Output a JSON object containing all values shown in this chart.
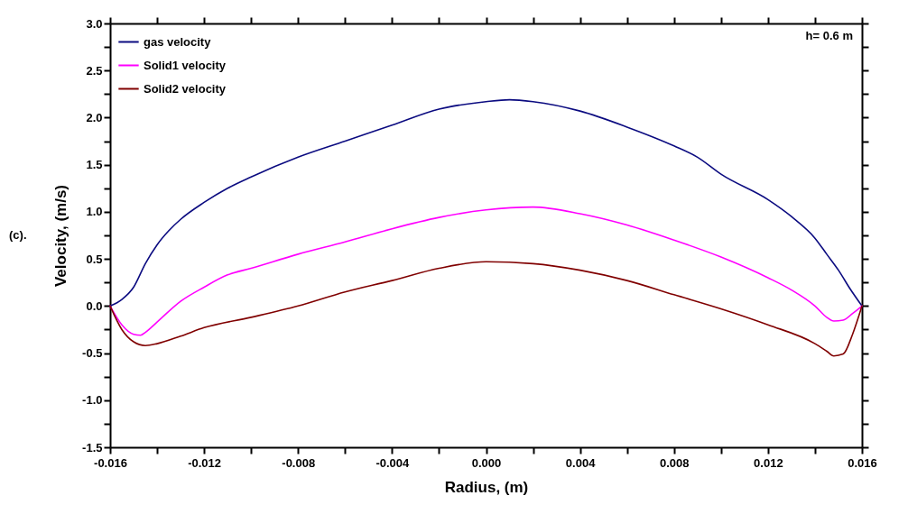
{
  "chart_data": {
    "type": "line",
    "xlabel": "Radius, (m)",
    "ylabel": "Velocity, (m/s)",
    "annotations": [
      "h= 0.6 m",
      "(c)."
    ],
    "xlim": [
      -0.016,
      0.016
    ],
    "ylim": [
      -1.5,
      3.0
    ],
    "xticks": [
      {
        "value": -0.016,
        "label": "-0.016"
      },
      {
        "value": -0.014,
        "label": null
      },
      {
        "value": -0.012,
        "label": "-0.012"
      },
      {
        "value": -0.01,
        "label": null
      },
      {
        "value": -0.008,
        "label": "-0.008"
      },
      {
        "value": -0.006,
        "label": null
      },
      {
        "value": -0.004,
        "label": "-0.004"
      },
      {
        "value": -0.002,
        "label": null
      },
      {
        "value": 0,
        "label": "0.000"
      },
      {
        "value": 0.002,
        "label": null
      },
      {
        "value": 0.004,
        "label": "0.004"
      },
      {
        "value": 0.006,
        "label": null
      },
      {
        "value": 0.008,
        "label": "0.008"
      },
      {
        "value": 0.01,
        "label": null
      },
      {
        "value": 0.012,
        "label": "0.012"
      },
      {
        "value": 0.014,
        "label": null
      },
      {
        "value": 0.016,
        "label": "0.016"
      }
    ],
    "yticks": [
      {
        "value": -1.5,
        "label": "-1.5"
      },
      {
        "value": -1.25,
        "label": null
      },
      {
        "value": -1.0,
        "label": "-1.0"
      },
      {
        "value": -0.75,
        "label": null
      },
      {
        "value": -0.5,
        "label": "-0.5"
      },
      {
        "value": -0.25,
        "label": null
      },
      {
        "value": 0,
        "label": "0.0"
      },
      {
        "value": 0.25,
        "label": null
      },
      {
        "value": 0.5,
        "label": "0.5"
      },
      {
        "value": 0.75,
        "label": null
      },
      {
        "value": 1.0,
        "label": "1.0"
      },
      {
        "value": 1.25,
        "label": null
      },
      {
        "value": 1.5,
        "label": "1.5"
      },
      {
        "value": 1.75,
        "label": null
      },
      {
        "value": 2.0,
        "label": "2.0"
      },
      {
        "value": 2.25,
        "label": null
      },
      {
        "value": 2.5,
        "label": "2.5"
      },
      {
        "value": 2.75,
        "label": null
      },
      {
        "value": 3.0,
        "label": "3.0"
      }
    ],
    "grid": false,
    "legend": "top left",
    "marker": "none",
    "line_style": "solid",
    "series": [
      {
        "name": "gas velocity",
        "color": "#0b0b80",
        "x": [
          -0.016,
          -0.0155,
          -0.015,
          -0.0145,
          -0.014,
          -0.0135,
          -0.013,
          -0.012,
          -0.011,
          -0.01,
          -0.008,
          -0.006,
          -0.004,
          -0.002,
          0,
          0.001,
          0.002,
          0.004,
          0.006,
          0.008,
          0.009,
          0.01,
          0.012,
          0.013,
          0.014,
          0.0145,
          0.015,
          0.0155,
          0.016
        ],
        "values": [
          0,
          0.07,
          0.2,
          0.45,
          0.65,
          0.8,
          0.92,
          1.1,
          1.25,
          1.37,
          1.58,
          1.75,
          1.92,
          2.09,
          2.17,
          2.19,
          2.17,
          2.07,
          1.9,
          1.7,
          1.58,
          1.4,
          1.13,
          0.95,
          0.72,
          0.55,
          0.38,
          0.18,
          0
        ]
      },
      {
        "name": "Solid1 velocity",
        "color": "#ff00ff",
        "x": [
          -0.016,
          -0.0155,
          -0.015,
          -0.0147,
          -0.0145,
          -0.014,
          -0.013,
          -0.012,
          -0.011,
          -0.01,
          -0.008,
          -0.006,
          -0.004,
          -0.002,
          0,
          0.002,
          0.004,
          0.006,
          0.008,
          0.01,
          0.012,
          0.013,
          0.014,
          0.0145,
          0.0148,
          0.0152,
          0.0156,
          0.016
        ],
        "values": [
          0,
          -0.2,
          -0.3,
          -0.31,
          -0.28,
          -0.17,
          0.05,
          0.2,
          0.33,
          0.4,
          0.55,
          0.68,
          0.82,
          0.94,
          1.02,
          1.05,
          0.98,
          0.86,
          0.7,
          0.52,
          0.3,
          0.17,
          0.0,
          -0.12,
          -0.16,
          -0.15,
          -0.08,
          0
        ]
      },
      {
        "name": "Solid2 velocity",
        "color": "#800000",
        "x": [
          -0.016,
          -0.0155,
          -0.015,
          -0.0145,
          -0.014,
          -0.013,
          -0.012,
          -0.01,
          -0.008,
          -0.006,
          -0.004,
          -0.002,
          0,
          0.002,
          0.004,
          0.006,
          0.008,
          0.01,
          0.012,
          0.014,
          0.0145,
          0.0148,
          0.0152,
          0.0156,
          0.016
        ],
        "values": [
          0,
          -0.25,
          -0.38,
          -0.42,
          -0.4,
          -0.32,
          -0.23,
          -0.12,
          0.0,
          0.15,
          0.27,
          0.4,
          0.47,
          0.45,
          0.38,
          0.27,
          0.12,
          -0.03,
          -0.2,
          -0.4,
          -0.48,
          -0.53,
          -0.51,
          -0.3,
          0
        ]
      }
    ]
  }
}
